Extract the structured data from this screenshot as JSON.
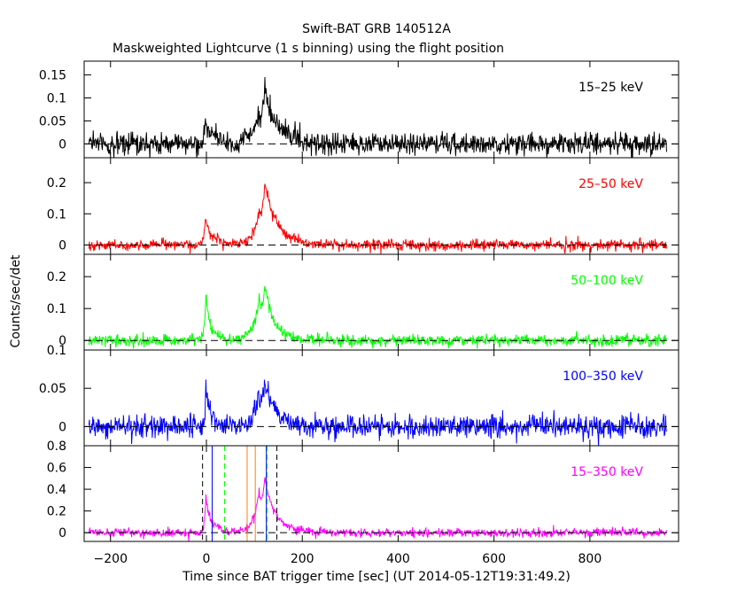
{
  "chart_data": {
    "type": "line",
    "title": "Swift-BAT GRB 140512A",
    "subtitle": "Maskweighted Lightcurve (1 s binning) using the flight position",
    "xlabel": "Time since BAT trigger time [sec] (UT 2014-05-12T19:31:49.2)",
    "ylabel": "Counts/sec/det",
    "xlim": [
      -255,
      985
    ],
    "x_ticks": [
      -200,
      0,
      200,
      400,
      600,
      800
    ],
    "x_tick_labels": [
      "−200",
      "0",
      "200",
      "400",
      "600",
      "800"
    ],
    "data_x_range": [
      -245,
      960
    ],
    "grid": false,
    "panels": [
      {
        "band": "15–25 keV",
        "color": "#000000",
        "ylim": [
          -0.03,
          0.18
        ],
        "y_ticks": [
          0,
          0.05,
          0.1,
          0.15
        ],
        "y_tick_labels": [
          "0",
          "0.05",
          "0.1",
          "0.15"
        ],
        "noise_sigma": 0.012,
        "peaks": [
          {
            "t": -2,
            "amp": 0.05,
            "rise": 3,
            "decay": 10
          },
          {
            "t": 20,
            "amp": 0.012,
            "rise": 5,
            "decay": 10
          },
          {
            "t": 108,
            "amp": 0.05,
            "rise": 15,
            "decay": 10
          },
          {
            "t": 121,
            "amp": 0.1,
            "rise": 6,
            "decay": 30
          }
        ]
      },
      {
        "band": "25–50 keV",
        "color": "#ff0000",
        "ylim": [
          -0.03,
          0.28
        ],
        "y_ticks": [
          0,
          0.1,
          0.2
        ],
        "y_tick_labels": [
          "0",
          "0.1",
          "0.2"
        ],
        "noise_sigma": 0.009,
        "peaks": [
          {
            "t": -2,
            "amp": 0.09,
            "rise": 3,
            "decay": 10
          },
          {
            "t": 22,
            "amp": 0.02,
            "rise": 5,
            "decay": 10
          },
          {
            "t": 110,
            "amp": 0.08,
            "rise": 15,
            "decay": 12
          },
          {
            "t": 122,
            "amp": 0.17,
            "rise": 6,
            "decay": 28
          }
        ]
      },
      {
        "band": "50–100 keV",
        "color": "#00ff00",
        "ylim": [
          -0.03,
          0.27
        ],
        "y_ticks": [
          0,
          0.1,
          0.2
        ],
        "y_tick_labels": [
          "0",
          "0.1",
          "0.2"
        ],
        "noise_sigma": 0.009,
        "peaks": [
          {
            "t": -1,
            "amp": 0.14,
            "rise": 3,
            "decay": 9
          },
          {
            "t": 22,
            "amp": 0.015,
            "rise": 5,
            "decay": 10
          },
          {
            "t": 110,
            "amp": 0.12,
            "rise": 12,
            "decay": 10
          },
          {
            "t": 122,
            "amp": 0.14,
            "rise": 5,
            "decay": 22
          }
        ]
      },
      {
        "band": "100–350 keV",
        "color": "#0000ff",
        "ylim": [
          -0.025,
          0.1
        ],
        "y_ticks": [
          0,
          0.05,
          0.1
        ],
        "y_tick_labels": [
          "0",
          "0.05",
          "0.1"
        ],
        "noise_sigma": 0.0075,
        "peaks": [
          {
            "t": -1,
            "amp": 0.055,
            "rise": 3,
            "decay": 9
          },
          {
            "t": 110,
            "amp": 0.04,
            "rise": 12,
            "decay": 10
          },
          {
            "t": 122,
            "amp": 0.05,
            "rise": 5,
            "decay": 22
          }
        ]
      },
      {
        "band": "15–350 keV",
        "color": "#ff00ff",
        "ylim": [
          -0.08,
          0.8
        ],
        "y_ticks": [
          0,
          0.2,
          0.4,
          0.6,
          0.8
        ],
        "y_tick_labels": [
          "0",
          "0.2",
          "0.4",
          "0.6",
          "0.8"
        ],
        "noise_sigma": 0.02,
        "peaks": [
          {
            "t": -1,
            "amp": 0.33,
            "rise": 3,
            "decay": 9
          },
          {
            "t": 22,
            "amp": 0.05,
            "rise": 5,
            "decay": 10
          },
          {
            "t": 110,
            "amp": 0.3,
            "rise": 14,
            "decay": 10
          },
          {
            "t": 122,
            "amp": 0.42,
            "rise": 6,
            "decay": 25
          }
        ],
        "vlines": [
          {
            "x": -8,
            "color": "#000000",
            "dash": true
          },
          {
            "x": 147,
            "color": "#000000",
            "dash": true
          },
          {
            "x": 12,
            "color": "#0000ff",
            "dash": false
          },
          {
            "x": 125,
            "color": "#0000ff",
            "dash": false
          },
          {
            "x": 38,
            "color": "#00ff00",
            "dash": true
          },
          {
            "x": 127,
            "color": "#00ff00",
            "dash": true
          },
          {
            "x": 85,
            "color": "#ff8000",
            "dash": false
          },
          {
            "x": 102,
            "color": "#ff8000",
            "dash": false
          }
        ]
      }
    ]
  }
}
